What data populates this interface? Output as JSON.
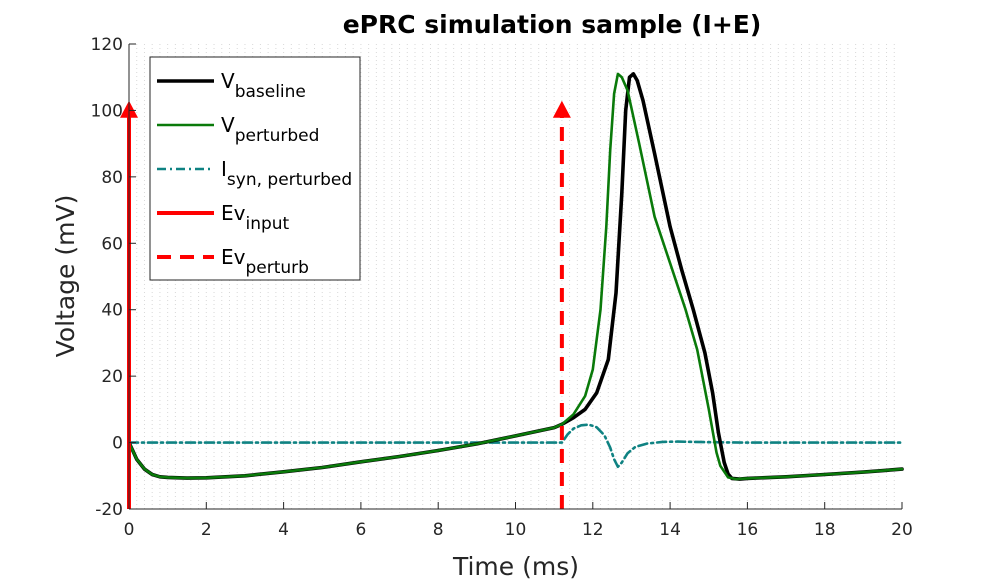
{
  "chart_data": {
    "type": "line",
    "title": "ePRC simulation sample (I+E)",
    "xlabel": "Time (ms)",
    "ylabel": "Voltage (mV)",
    "xlim": [
      0,
      20
    ],
    "ylim": [
      -20,
      120
    ],
    "xticks": [
      "0",
      "2",
      "4",
      "6",
      "8",
      "10",
      "12",
      "14",
      "16",
      "18",
      "20"
    ],
    "yticks": [
      "-20",
      "0",
      "20",
      "40",
      "60",
      "80",
      "100",
      "120"
    ],
    "grid": "vertical dotted minor lines",
    "legend_position": "top-left",
    "colors": {
      "baseline": "#000000",
      "perturbed": "#0a7a0a",
      "isyn": "#0f8282",
      "event": "#ff0000"
    },
    "series": [
      {
        "name": "V_baseline",
        "legend": {
          "main": "V",
          "sub": "baseline"
        },
        "style": "solid",
        "x": [
          0,
          0.1,
          0.2,
          0.4,
          0.6,
          0.8,
          1.0,
          1.5,
          2,
          3,
          4,
          5,
          6,
          7,
          8,
          9,
          10,
          11,
          11.2,
          11.5,
          11.8,
          12.1,
          12.4,
          12.6,
          12.75,
          12.85,
          12.95,
          13.05,
          13.15,
          13.3,
          13.6,
          14.0,
          14.3,
          14.6,
          14.9,
          15.1,
          15.25,
          15.4,
          15.5,
          15.6,
          15.8,
          16,
          17,
          18,
          19,
          20
        ],
        "values": [
          0,
          -2.5,
          -5,
          -8,
          -9.6,
          -10.3,
          -10.5,
          -10.7,
          -10.6,
          -10,
          -8.8,
          -7.5,
          -5.8,
          -4.2,
          -2.4,
          -0.4,
          2,
          4.5,
          5.5,
          7.5,
          10,
          15,
          25,
          45,
          75,
          100,
          110,
          111,
          109,
          103,
          87,
          65,
          52,
          40,
          27,
          15,
          3,
          -6,
          -9.5,
          -10.8,
          -11,
          -10.8,
          -10.3,
          -9.6,
          -8.9,
          -8
        ]
      },
      {
        "name": "V_perturbed",
        "legend": {
          "main": "V",
          "sub": "perturbed"
        },
        "style": "solid",
        "x": [
          0,
          0.1,
          0.2,
          0.4,
          0.6,
          0.8,
          1.0,
          1.5,
          2,
          3,
          4,
          5,
          6,
          7,
          8,
          9,
          10,
          11,
          11.2,
          11.5,
          11.8,
          12.0,
          12.2,
          12.35,
          12.45,
          12.55,
          12.65,
          12.75,
          12.9,
          13.2,
          13.6,
          14.0,
          14.4,
          14.7,
          15.0,
          15.2,
          15.3,
          15.5,
          15.7,
          16,
          17,
          18,
          19,
          20
        ],
        "values": [
          0,
          -2.5,
          -5,
          -8,
          -9.6,
          -10.3,
          -10.5,
          -10.7,
          -10.6,
          -10,
          -8.8,
          -7.5,
          -5.8,
          -4.2,
          -2.4,
          -0.4,
          2,
          4.5,
          5.5,
          8.5,
          14,
          22,
          40,
          65,
          88,
          105,
          111,
          110,
          106,
          90,
          68,
          54,
          40,
          28,
          10,
          -3,
          -7,
          -10.5,
          -11,
          -10.8,
          -10.3,
          -9.6,
          -8.9,
          -8
        ]
      },
      {
        "name": "I_syn, perturbed",
        "legend": {
          "main": "I",
          "sub": "syn, perturbed"
        },
        "style": "dashdot",
        "x": [
          0,
          11.2,
          11.35,
          11.5,
          11.7,
          11.9,
          12.1,
          12.3,
          12.45,
          12.55,
          12.65,
          12.75,
          12.9,
          13.1,
          13.4,
          13.8,
          14.2,
          14.6,
          15,
          16,
          17,
          18,
          19,
          20
        ],
        "values": [
          0,
          0,
          2.5,
          4.2,
          5.2,
          5.4,
          4.6,
          2.2,
          -1.5,
          -5,
          -7.3,
          -6,
          -3.2,
          -1.3,
          -0.3,
          0.2,
          0.3,
          0.2,
          0.1,
          0,
          0,
          0,
          0,
          0
        ]
      }
    ],
    "events": [
      {
        "name": "Ev_input",
        "legend": {
          "main": "Ev",
          "sub": "input"
        },
        "style": "solid",
        "x": 0,
        "y_from": -20,
        "y_to": 102
      },
      {
        "name": "Ev_perturb",
        "legend": {
          "main": "Ev",
          "sub": "perturb"
        },
        "style": "dashed",
        "x": 11.2,
        "y_from": -20,
        "y_to": 102
      }
    ]
  }
}
